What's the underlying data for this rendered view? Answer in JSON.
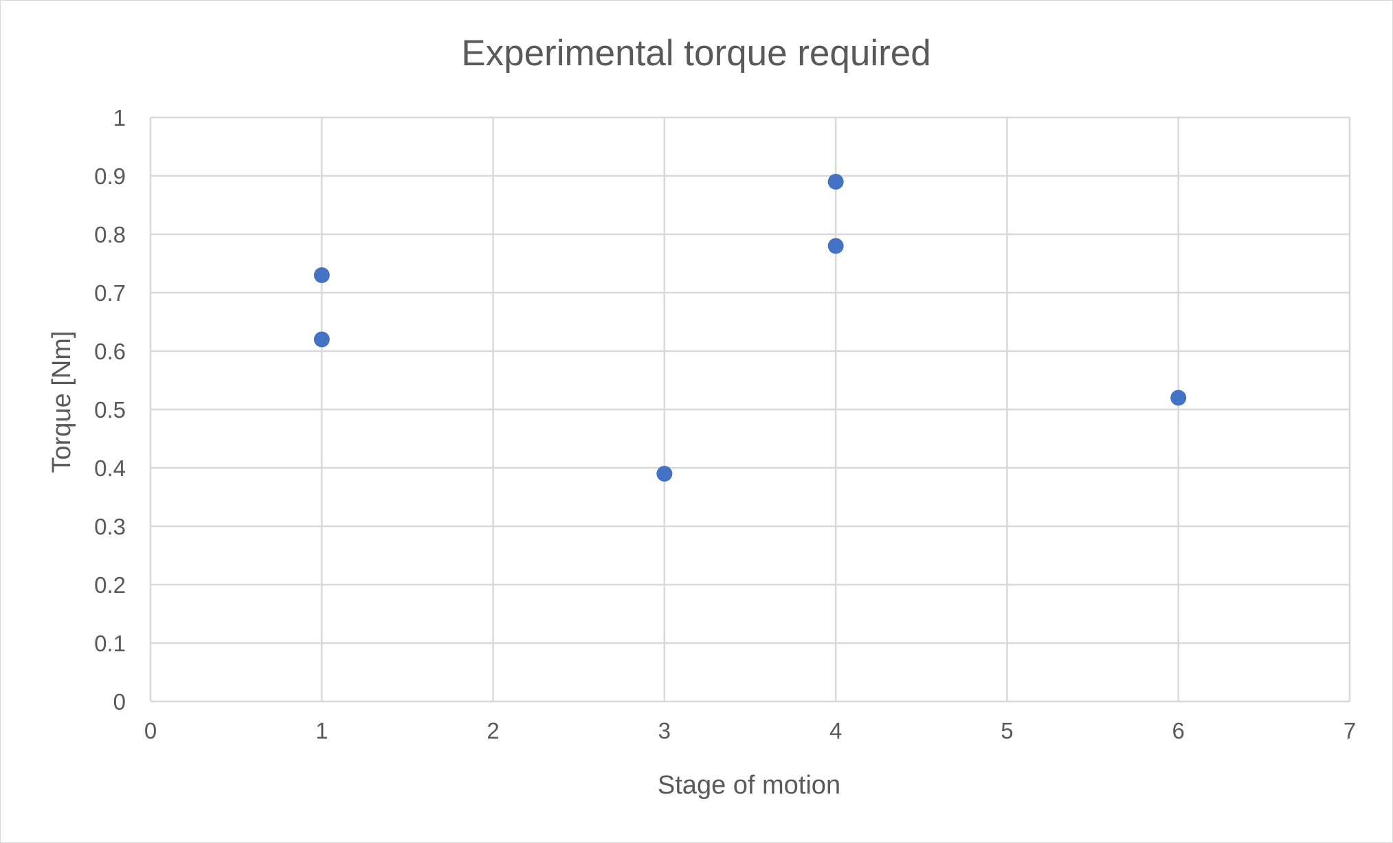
{
  "chart_data": {
    "type": "scatter",
    "title": "Experimental torque required",
    "xlabel": "Stage of motion",
    "ylabel": "Torque [Nm]",
    "xlim": [
      0,
      7
    ],
    "ylim": [
      0,
      1
    ],
    "x_ticks": [
      "0",
      "1",
      "2",
      "3",
      "4",
      "5",
      "6",
      "7"
    ],
    "y_ticks": [
      "0",
      "0.1",
      "0.2",
      "0.3",
      "0.4",
      "0.5",
      "0.6",
      "0.7",
      "0.8",
      "0.9",
      "1"
    ],
    "grid": true,
    "legend": "none",
    "series": [
      {
        "color": "#4472c4",
        "points": [
          {
            "x": 1,
            "y": 0.73
          },
          {
            "x": 1,
            "y": 0.62
          },
          {
            "x": 3,
            "y": 0.39
          },
          {
            "x": 4,
            "y": 0.89
          },
          {
            "x": 4,
            "y": 0.78
          },
          {
            "x": 6,
            "y": 0.52
          }
        ]
      }
    ],
    "gridline_color": "#d9d9d9",
    "text_color": "#595959"
  }
}
